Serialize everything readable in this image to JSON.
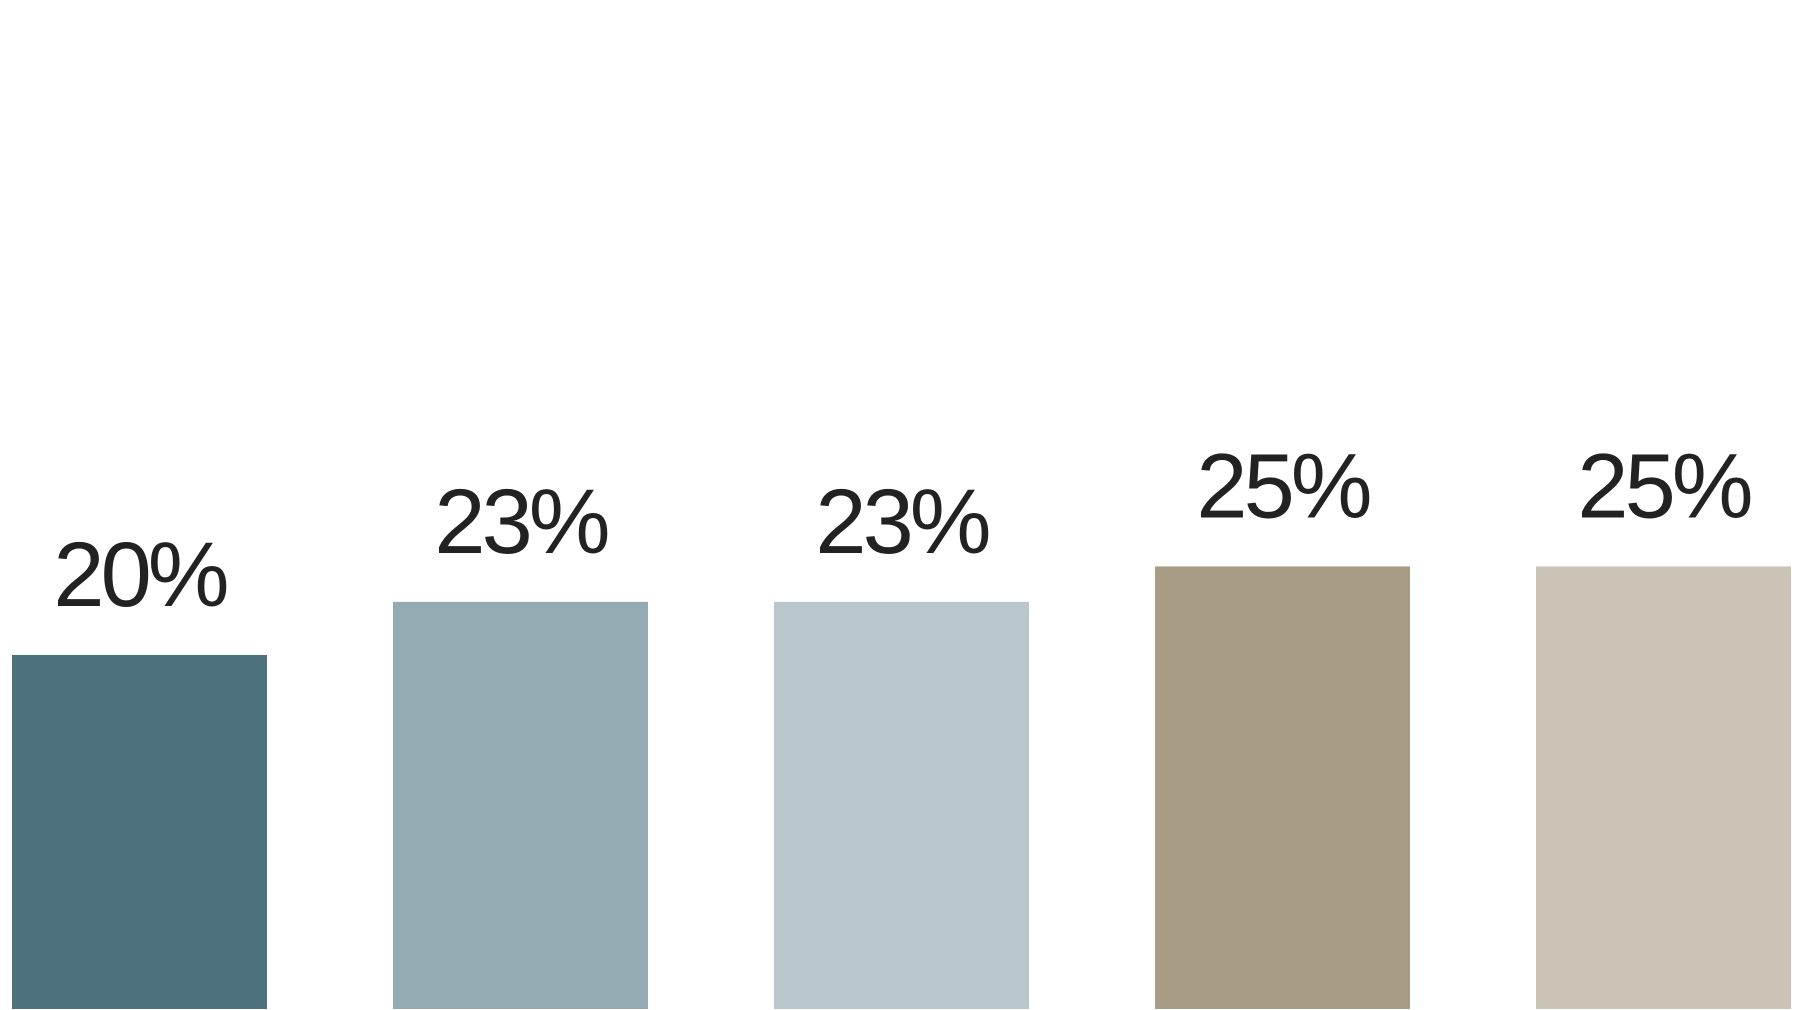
{
  "chart_data": {
    "type": "bar",
    "categories": [
      null,
      null,
      null,
      null,
      null
    ],
    "values": [
      20,
      23,
      23,
      25,
      25
    ],
    "value_labels": [
      "20%",
      "23%",
      "23%",
      "25%",
      "25%"
    ],
    "colors": [
      "#4e717e",
      "#95abb3",
      "#b9c6cc",
      "#a99c85",
      "#cbc3b6"
    ],
    "ylim": [
      0,
      57
    ]
  }
}
